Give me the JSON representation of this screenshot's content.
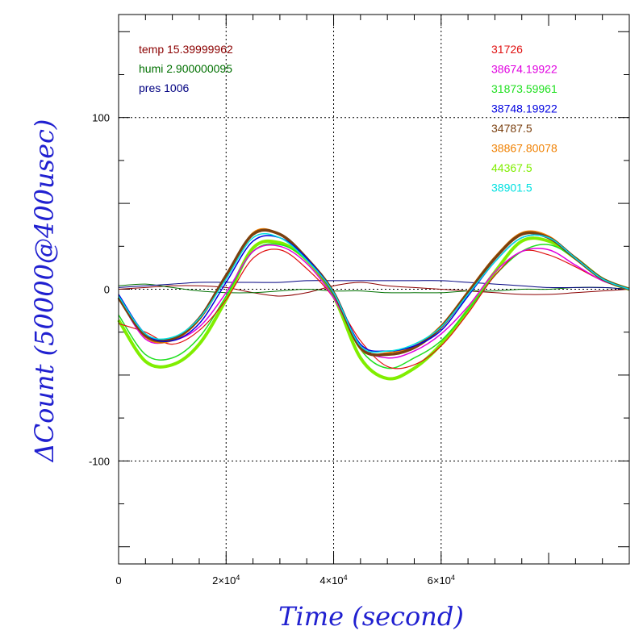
{
  "chart_data": {
    "type": "line",
    "xlabel": "Time (second)",
    "ylabel": "ΔCount (50000@400usec)",
    "xlim": [
      0,
      95000
    ],
    "ylim": [
      -160,
      160
    ],
    "grid": true,
    "x_ticks": [
      {
        "value": 0,
        "mant": "0",
        "exp": ""
      },
      {
        "value": 20000,
        "mant": "2×10",
        "exp": "4"
      },
      {
        "value": 40000,
        "mant": "4×10",
        "exp": "4"
      },
      {
        "value": 60000,
        "mant": "6×10",
        "exp": "4"
      }
    ],
    "y_ticks": [
      {
        "value": 100,
        "label": "100"
      },
      {
        "value": 0,
        "label": "0"
      },
      {
        "value": -100,
        "label": "-100"
      }
    ],
    "env_legend": [
      {
        "label": "temp 15.39999962",
        "color": "#8b0000"
      },
      {
        "label": "humi 2.900000095",
        "color": "#007000"
      },
      {
        "label": "pres 1006",
        "color": "#000080"
      }
    ],
    "x": [
      0,
      5000,
      10000,
      15000,
      20000,
      25000,
      30000,
      35000,
      40000,
      45000,
      50000,
      55000,
      60000,
      65000,
      70000,
      75000,
      80000,
      85000,
      90000,
      95000
    ],
    "series": [
      {
        "name": "31726",
        "color": "#e01010",
        "width": 1.2,
        "values": [
          -20,
          -25,
          -32,
          -24,
          -6,
          18,
          23,
          12,
          -5,
          -30,
          -45,
          -44,
          -33,
          -14,
          8,
          22,
          20,
          13,
          5,
          0
        ]
      },
      {
        "name": "38674.19922",
        "color": "#e000e0",
        "width": 1.5,
        "values": [
          -5,
          -29,
          -30,
          -22,
          -2,
          22,
          25,
          15,
          -5,
          -33,
          -40,
          -36,
          -26,
          -10,
          10,
          22,
          23,
          14,
          5,
          0
        ]
      },
      {
        "name": "31873.59961",
        "color": "#20e020",
        "width": 1.5,
        "values": [
          -15,
          -38,
          -40,
          -28,
          -4,
          22,
          26,
          17,
          -4,
          -35,
          -46,
          -40,
          -30,
          -12,
          8,
          22,
          26,
          18,
          6,
          0
        ]
      },
      {
        "name": "38748.19922",
        "color": "#0000e0",
        "width": 1.5,
        "values": [
          -3,
          -26,
          -30,
          -20,
          4,
          28,
          30,
          18,
          -2,
          -32,
          -36,
          -33,
          -24,
          -4,
          16,
          30,
          30,
          18,
          6,
          0
        ]
      },
      {
        "name": "34787.5",
        "color": "#7a4010",
        "width": 3.5,
        "values": [
          -5,
          -27,
          -29,
          -17,
          8,
          32,
          32,
          18,
          -2,
          -34,
          -38,
          -34,
          -22,
          -2,
          18,
          32,
          30,
          18,
          6,
          0
        ]
      },
      {
        "name": "38867.80078",
        "color": "#f08000",
        "width": 1.5,
        "values": [
          -4,
          -28,
          -30,
          -18,
          7,
          33,
          32,
          17,
          -3,
          -35,
          -37,
          -33,
          -21,
          -1,
          19,
          33,
          31,
          18,
          6,
          0
        ]
      },
      {
        "name": "44367.5",
        "color": "#80ee00",
        "width": 4,
        "values": [
          -18,
          -42,
          -44,
          -32,
          -6,
          24,
          27,
          17,
          -4,
          -40,
          -52,
          -46,
          -32,
          -12,
          10,
          28,
          28,
          18,
          6,
          0
        ]
      },
      {
        "name": "38901.5",
        "color": "#00e0e0",
        "width": 1.5,
        "values": [
          -4,
          -26,
          -28,
          -17,
          6,
          30,
          30,
          17,
          -2,
          -33,
          -36,
          -32,
          -22,
          -3,
          16,
          30,
          30,
          18,
          6,
          0
        ]
      }
    ],
    "env_series": [
      {
        "name": "temp",
        "color": "#8b0000",
        "width": 1,
        "values": [
          0,
          1,
          2,
          2,
          1,
          -2,
          -4,
          -2,
          2,
          4,
          2,
          1,
          0,
          -1,
          -2,
          -3,
          -3,
          -2,
          -1,
          0
        ]
      },
      {
        "name": "humi",
        "color": "#007000",
        "width": 1,
        "values": [
          2,
          3,
          1,
          -1,
          -2,
          -2,
          -1,
          0,
          -1,
          -1,
          -2,
          -2,
          -2,
          -1,
          -1,
          0,
          0,
          1,
          1,
          0
        ]
      },
      {
        "name": "pres",
        "color": "#000080",
        "width": 1,
        "values": [
          1,
          2,
          3,
          4,
          4,
          4,
          4,
          5,
          5,
          5,
          5,
          5,
          5,
          4,
          3,
          2,
          1,
          1,
          1,
          0
        ]
      }
    ]
  }
}
